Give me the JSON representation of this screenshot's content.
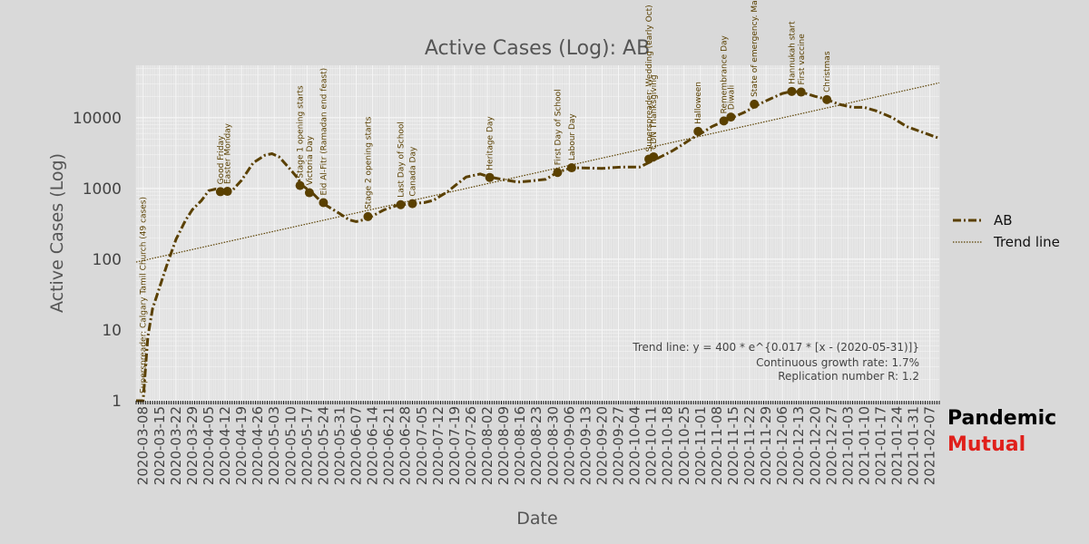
{
  "colors": {
    "series": "#5a4000",
    "brand_secondary": "#e0201b",
    "background": "#d9d9d9",
    "plot_background": "#e2e2e2",
    "grid": "#f7f7f7"
  },
  "brand": {
    "line1": "Pandemic",
    "line2": "Mutual"
  },
  "trend_note": {
    "formula": "Trend line: y = 400 * e^{0.017 * [x - (2020-05-31)]}",
    "growth": "Continuous growth rate: 1.7%",
    "replication": "Replication number R: 1.2"
  },
  "chart_data": {
    "type": "line",
    "title": "Active Cases (Log): AB",
    "xlabel": "Date",
    "ylabel": "Active Cases (Log)",
    "yscale": "log",
    "ylim": [
      1,
      55000
    ],
    "xlim": [
      "2020-03-05",
      "2021-02-11"
    ],
    "y_ticks": [
      {
        "value": 1,
        "label": "1"
      },
      {
        "value": 10,
        "label": "10"
      },
      {
        "value": 100,
        "label": "100"
      },
      {
        "value": 1000,
        "label": "1000"
      },
      {
        "value": 10000,
        "label": "10000"
      }
    ],
    "x_ticks": [
      "2020-03-08",
      "2020-03-15",
      "2020-03-22",
      "2020-03-29",
      "2020-04-05",
      "2020-04-12",
      "2020-04-19",
      "2020-04-26",
      "2020-05-03",
      "2020-05-10",
      "2020-05-17",
      "2020-05-24",
      "2020-05-31",
      "2020-06-07",
      "2020-06-14",
      "2020-06-21",
      "2020-06-28",
      "2020-07-05",
      "2020-07-12",
      "2020-07-19",
      "2020-07-26",
      "2020-08-02",
      "2020-08-09",
      "2020-08-16",
      "2020-08-23",
      "2020-08-30",
      "2020-09-06",
      "2020-09-13",
      "2020-09-20",
      "2020-09-27",
      "2020-10-04",
      "2020-10-11",
      "2020-10-18",
      "2020-10-25",
      "2020-11-01",
      "2020-11-08",
      "2020-11-15",
      "2020-11-22",
      "2020-11-29",
      "2020-12-06",
      "2020-12-13",
      "2020-12-20",
      "2020-12-27",
      "2021-01-03",
      "2021-01-10",
      "2021-01-17",
      "2021-01-24",
      "2021-01-31",
      "2021-02-07"
    ],
    "legend": [
      "AB",
      "Trend line"
    ],
    "legend_position": "right",
    "series": [
      {
        "name": "AB",
        "style": "dash-dot",
        "points": [
          [
            "2020-03-05",
            1
          ],
          [
            "2020-03-08",
            1
          ],
          [
            "2020-03-10",
            8
          ],
          [
            "2020-03-12",
            20
          ],
          [
            "2020-03-15",
            40
          ],
          [
            "2020-03-18",
            80
          ],
          [
            "2020-03-22",
            190
          ],
          [
            "2020-03-26",
            350
          ],
          [
            "2020-03-29",
            500
          ],
          [
            "2020-04-02",
            680
          ],
          [
            "2020-04-05",
            930
          ],
          [
            "2020-04-08",
            980
          ],
          [
            "2020-04-12",
            900
          ],
          [
            "2020-04-15",
            930
          ],
          [
            "2020-04-19",
            1300
          ],
          [
            "2020-04-24",
            2300
          ],
          [
            "2020-04-29",
            2950
          ],
          [
            "2020-05-02",
            3100
          ],
          [
            "2020-05-05",
            2800
          ],
          [
            "2020-05-09",
            2000
          ],
          [
            "2020-05-13",
            1400
          ],
          [
            "2020-05-15",
            1100
          ],
          [
            "2020-05-19",
            880
          ],
          [
            "2020-05-22",
            700
          ],
          [
            "2020-05-25",
            580
          ],
          [
            "2020-05-31",
            440
          ],
          [
            "2020-06-04",
            360
          ],
          [
            "2020-06-07",
            340
          ],
          [
            "2020-06-10",
            360
          ],
          [
            "2020-06-14",
            410
          ],
          [
            "2020-06-19",
            500
          ],
          [
            "2020-06-24",
            570
          ],
          [
            "2020-06-30",
            610
          ],
          [
            "2020-07-06",
            630
          ],
          [
            "2020-07-10",
            680
          ],
          [
            "2020-07-16",
            900
          ],
          [
            "2020-07-20",
            1150
          ],
          [
            "2020-07-24",
            1450
          ],
          [
            "2020-07-30",
            1600
          ],
          [
            "2020-08-03",
            1450
          ],
          [
            "2020-08-08",
            1350
          ],
          [
            "2020-08-15",
            1230
          ],
          [
            "2020-08-21",
            1280
          ],
          [
            "2020-08-27",
            1350
          ],
          [
            "2020-09-01",
            1700
          ],
          [
            "2020-09-07",
            1960
          ],
          [
            "2020-09-12",
            1950
          ],
          [
            "2020-09-20",
            1920
          ],
          [
            "2020-09-28",
            2000
          ],
          [
            "2020-10-06",
            2000
          ],
          [
            "2020-10-12",
            2500
          ],
          [
            "2020-10-16",
            2900
          ],
          [
            "2020-10-20",
            3400
          ],
          [
            "2020-10-25",
            4300
          ],
          [
            "2020-10-28",
            5000
          ],
          [
            "2020-11-02",
            6200
          ],
          [
            "2020-11-06",
            7500
          ],
          [
            "2020-11-12",
            9200
          ],
          [
            "2020-11-16",
            10500
          ],
          [
            "2020-11-20",
            12000
          ],
          [
            "2020-11-26",
            15500
          ],
          [
            "2020-12-01",
            18500
          ],
          [
            "2020-12-06",
            22000
          ],
          [
            "2020-12-10",
            23500
          ],
          [
            "2020-12-14",
            23000
          ],
          [
            "2020-12-20",
            20000
          ],
          [
            "2020-12-24",
            18500
          ],
          [
            "2020-12-30",
            15500
          ],
          [
            "2021-01-05",
            14000
          ],
          [
            "2021-01-10",
            14000
          ],
          [
            "2021-01-15",
            12500
          ],
          [
            "2021-01-22",
            10000
          ],
          [
            "2021-01-28",
            7500
          ],
          [
            "2021-02-04",
            6200
          ],
          [
            "2021-02-11",
            5100
          ]
        ]
      },
      {
        "name": "Trend line",
        "style": "dotted",
        "formula": "y = 400 * e^{0.017 * [x - (2020-05-31)]}",
        "base_date": "2020-05-31",
        "base_value": 400,
        "rate": 0.017
      }
    ],
    "annotations": [
      {
        "date": "2020-03-08",
        "value": 1,
        "text": "Superspreader: Calgary Tamil Church (49 cases)",
        "marker": false
      },
      {
        "date": "2020-04-10",
        "value": 900,
        "text": "Good Friday",
        "marker": true
      },
      {
        "date": "2020-04-13",
        "value": 910,
        "text": "Easter Monday",
        "marker": true
      },
      {
        "date": "2020-05-14",
        "value": 1100,
        "text": "Stage 1 opening starts",
        "marker": true
      },
      {
        "date": "2020-05-18",
        "value": 870,
        "text": "Victoria Day",
        "marker": true
      },
      {
        "date": "2020-05-24",
        "value": 630,
        "text": "Eid Al-Fitr (Ramadan end feast)",
        "marker": true
      },
      {
        "date": "2020-06-12",
        "value": 400,
        "text": "Stage 2 opening starts",
        "marker": true
      },
      {
        "date": "2020-06-26",
        "value": 590,
        "text": "Last Day of School",
        "marker": true
      },
      {
        "date": "2020-07-01",
        "value": 610,
        "text": "Canada Day",
        "marker": true
      },
      {
        "date": "2020-08-03",
        "value": 1430,
        "text": "Heritage Day",
        "marker": true
      },
      {
        "date": "2020-09-01",
        "value": 1680,
        "text": "First Day of School",
        "marker": true
      },
      {
        "date": "2020-09-07",
        "value": 1960,
        "text": "Labour Day",
        "marker": true
      },
      {
        "date": "2020-10-10",
        "value": 2600,
        "text": "Superspreader: Wedding (early Oct)",
        "marker": true
      },
      {
        "date": "2020-10-12",
        "value": 2800,
        "text": "CDN Thanksgiving",
        "marker": true
      },
      {
        "date": "2020-10-31",
        "value": 6400,
        "text": "Halloween",
        "marker": true
      },
      {
        "date": "2020-11-11",
        "value": 9000,
        "text": "Remembrance Day",
        "marker": true
      },
      {
        "date": "2020-11-14",
        "value": 10200,
        "text": "Diwali",
        "marker": true
      },
      {
        "date": "2020-11-24",
        "value": 15500,
        "text": "State of emergency. Mask",
        "marker": true
      },
      {
        "date": "2020-12-10",
        "value": 23500,
        "text": "Hannukah start",
        "marker": true
      },
      {
        "date": "2020-12-14",
        "value": 23000,
        "text": "First vaccine",
        "marker": true
      },
      {
        "date": "2020-12-25",
        "value": 18000,
        "text": "Christmas",
        "marker": true
      }
    ]
  }
}
